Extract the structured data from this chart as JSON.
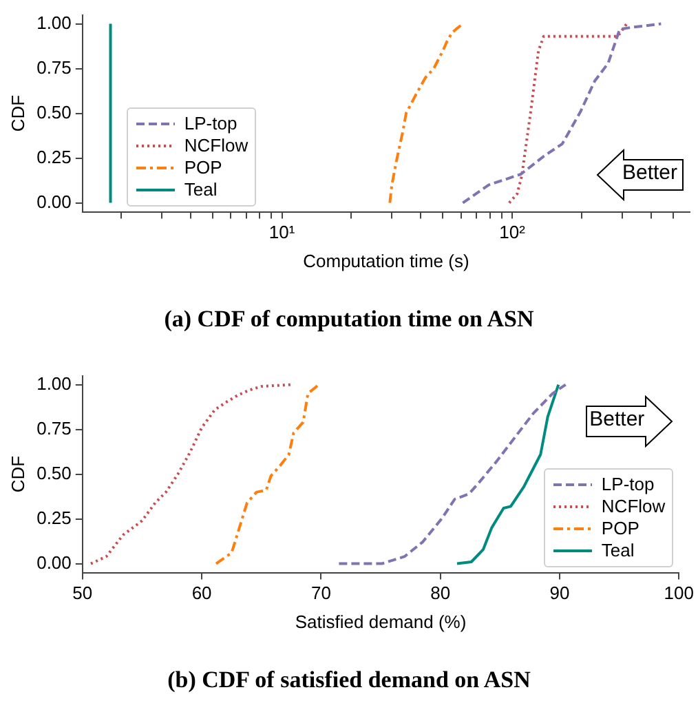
{
  "chart_data": [
    {
      "type": "line",
      "title": "(a) CDF of computation time on ASN",
      "xlabel": "Computation time (s)",
      "ylabel": "CDF",
      "log": "x",
      "xlim": [
        1.36,
        590
      ],
      "xticks": [
        {
          "value": 2,
          "label": null
        },
        {
          "value": 3,
          "label": null
        },
        {
          "value": 4,
          "label": null
        },
        {
          "value": 5,
          "label": null
        },
        {
          "value": 6,
          "label": null
        },
        {
          "value": 7,
          "label": null
        },
        {
          "value": 8,
          "label": null
        },
        {
          "value": 9,
          "label": null
        },
        {
          "value": 10,
          "label": "10¹"
        },
        {
          "value": 20,
          "label": null
        },
        {
          "value": 30,
          "label": null
        },
        {
          "value": 40,
          "label": null
        },
        {
          "value": 50,
          "label": null
        },
        {
          "value": 60,
          "label": null
        },
        {
          "value": 70,
          "label": null
        },
        {
          "value": 80,
          "label": null
        },
        {
          "value": 90,
          "label": null
        },
        {
          "value": 100,
          "label": "10²"
        },
        {
          "value": 200,
          "label": null
        },
        {
          "value": 300,
          "label": null
        },
        {
          "value": 400,
          "label": null
        },
        {
          "value": 500,
          "label": null
        }
      ],
      "ylim": [
        -0.05,
        1.05
      ],
      "yticks": [
        {
          "value": 0,
          "label": "0.00"
        },
        {
          "value": 0.25,
          "label": "0.25"
        },
        {
          "value": 0.5,
          "label": "0.50"
        },
        {
          "value": 0.75,
          "label": "0.75"
        },
        {
          "value": 1,
          "label": "1.00"
        }
      ],
      "grid": false,
      "legend": "bottom left",
      "marker": "none",
      "annotations": [
        "Better"
      ],
      "series": [
        {
          "name": "LP-top",
          "color": "#8172b2",
          "line_style": "dashed",
          "x": [
            61,
            79,
            109,
            137,
            165,
            198,
            228,
            261,
            293,
            329,
            443
          ],
          "values": [
            0,
            0.1,
            0.16,
            0.26,
            0.33,
            0.51,
            0.68,
            0.78,
            0.97,
            0.98,
            1
          ]
        },
        {
          "name": "NCFlow",
          "color": "#c44e52",
          "line_style": "dotted",
          "x": [
            97,
            105,
            110,
            120,
            130,
            137,
            287,
            314
          ],
          "values": [
            0,
            0.05,
            0.15,
            0.5,
            0.85,
            0.93,
            0.93,
            1
          ]
        },
        {
          "name": "POP",
          "color": "#ff7f0e",
          "line_style": "dashdot",
          "x": [
            29.4,
            30,
            31.6,
            33.5,
            34.6,
            38,
            42,
            45.6,
            50,
            52,
            54.7,
            57,
            61
          ],
          "values": [
            0,
            0.1,
            0.25,
            0.4,
            0.5,
            0.6,
            0.7,
            0.75,
            0.85,
            0.9,
            0.95,
            0.97,
            1
          ]
        },
        {
          "name": "Teal",
          "color": "#008b80",
          "line_style": "solid",
          "x": [
            1.8,
            1.8
          ],
          "values": [
            0,
            1
          ]
        }
      ]
    },
    {
      "type": "line",
      "title": "(b) CDF of satisfied demand on ASN",
      "xlabel": "Satisfied demand (%)",
      "ylabel": "CDF",
      "xlim": [
        50,
        100
      ],
      "xticks": [
        50,
        60,
        70,
        80,
        90,
        100
      ],
      "ylim": [
        -0.05,
        1.05
      ],
      "yticks": [
        {
          "value": 0,
          "label": "0.00"
        },
        {
          "value": 0.25,
          "label": "0.25"
        },
        {
          "value": 0.5,
          "label": "0.50"
        },
        {
          "value": 0.75,
          "label": "0.75"
        },
        {
          "value": 1,
          "label": "1.00"
        }
      ],
      "grid": false,
      "legend": "bottom right",
      "marker": "none",
      "annotations": [
        "Better"
      ],
      "series": [
        {
          "name": "LP-top",
          "color": "#8172b2",
          "line_style": "dashed",
          "x": [
            71.5,
            75.1,
            77,
            78.5,
            80.1,
            81.2,
            82.4,
            83.2,
            84.7,
            86.3,
            87.8,
            89.4,
            90.5
          ],
          "values": [
            0,
            0,
            0.04,
            0.12,
            0.25,
            0.36,
            0.39,
            0.45,
            0.57,
            0.71,
            0.84,
            0.95,
            1
          ]
        },
        {
          "name": "NCFlow",
          "color": "#c44e52",
          "line_style": "dotted",
          "x": [
            50.7,
            52,
            53.4,
            55,
            56.1,
            57,
            58,
            59,
            60,
            61.1,
            62,
            63,
            64,
            65,
            67.5
          ],
          "values": [
            0,
            0.04,
            0.16,
            0.24,
            0.34,
            0.4,
            0.5,
            0.62,
            0.76,
            0.86,
            0.9,
            0.94,
            0.97,
            0.99,
            1
          ]
        },
        {
          "name": "POP",
          "color": "#ff7f0e",
          "line_style": "dashdot",
          "x": [
            61.2,
            62.5,
            63.8,
            64.6,
            65.4,
            65.8,
            66.6,
            67.3,
            67.7,
            68.5,
            68.9,
            69.8
          ],
          "values": [
            0,
            0.06,
            0.34,
            0.4,
            0.41,
            0.49,
            0.55,
            0.61,
            0.73,
            0.79,
            0.95,
            1
          ]
        },
        {
          "name": "Teal",
          "color": "#008b80",
          "line_style": "solid",
          "x": [
            81.4,
            82.6,
            83.6,
            84.3,
            85.3,
            85.9,
            87,
            88.4,
            89,
            89.9
          ],
          "values": [
            0,
            0.01,
            0.08,
            0.2,
            0.31,
            0.32,
            0.43,
            0.61,
            0.82,
            1
          ]
        }
      ]
    }
  ]
}
